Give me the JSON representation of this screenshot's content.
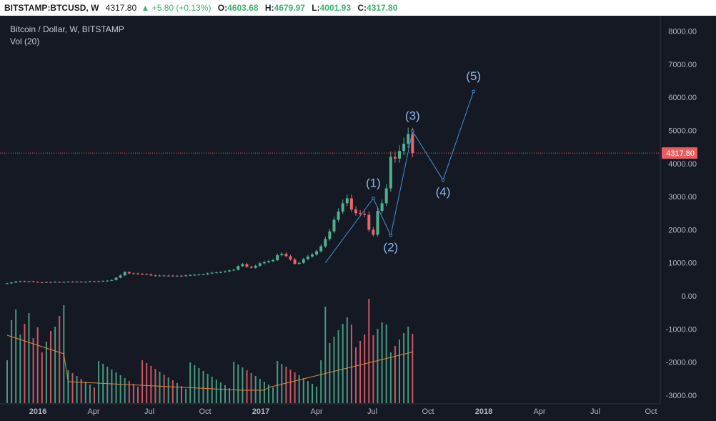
{
  "header": {
    "symbol": "BITSTAMP:BTCUSD, W",
    "last": "4317.80",
    "change": "▲ +5.80 (+0.13%)",
    "o_label": "O:",
    "o_value": "4603.68",
    "h_label": "H:",
    "h_value": "4679.97",
    "l_label": "L:",
    "l_value": "4001.93",
    "c_label": "C:",
    "c_value": "4317.80"
  },
  "legend": {
    "title": "Bitcoin / Dollar, W, BITSTAMP",
    "volume": "Vol (20)"
  },
  "colors": {
    "background": "#151924",
    "up": "#4fb08f",
    "down": "#e8646f",
    "wave": "#4a8fd6",
    "ma": "#d9893f",
    "last_price_badge": "#ea5d5f"
  },
  "chart_data": {
    "type": "candlestick",
    "title": "Bitcoin / Dollar, W, BITSTAMP",
    "y_axis_ticks": [
      8000,
      7000,
      6000,
      5000,
      4000,
      3000,
      2000,
      1000,
      0,
      -1000,
      -2000,
      -3000
    ],
    "y_axis_labels": [
      "8000.00",
      "7000.00",
      "6000.00",
      "5000.00",
      "4000.00",
      "3000.00",
      "2000.00",
      "1000.00",
      "0.00",
      "-1000.00",
      "-2000.00",
      "-3000.00"
    ],
    "x_axis_labels": [
      "2016",
      "Apr",
      "Jul",
      "Oct",
      "2017",
      "Apr",
      "Jul",
      "Oct",
      "2018",
      "Apr",
      "Jul",
      "Oct"
    ],
    "last_price": 4317.8,
    "last_price_label": "4317.80",
    "weekly_close": [
      380,
      404,
      435,
      445,
      432,
      440,
      422,
      410,
      405,
      418,
      415,
      425,
      420,
      422,
      428,
      425,
      430,
      418,
      425,
      440,
      438,
      445,
      452,
      460,
      480,
      550,
      620,
      720,
      680,
      675,
      665,
      655,
      650,
      620,
      600,
      615,
      610,
      612,
      605,
      610,
      600,
      620,
      630,
      640,
      645,
      650,
      680,
      700,
      710,
      720,
      740,
      770,
      790,
      900,
      960,
      880,
      850,
      910,
      985,
      1020,
      1050,
      1080,
      1230,
      1270,
      1200,
      1100,
      970,
      1000,
      1110,
      1190,
      1250,
      1350,
      1500,
      1720,
      1950,
      2300,
      2550,
      2800,
      2950,
      2610,
      2500,
      2480,
      2450,
      2000,
      1850,
      2570,
      2800,
      3250,
      4200,
      4150,
      4380,
      4600,
      4890,
      4317.8
    ],
    "wave_points": [
      {
        "label": "",
        "date_index": 73,
        "value": 1000
      },
      {
        "label": "(1)",
        "date_index": 84,
        "value": 2950
      },
      {
        "label": "(2)",
        "date_index": 88,
        "value": 1830
      },
      {
        "label": "(3)",
        "date_index": 93,
        "value": 4980
      },
      {
        "label": "(4)",
        "date_index": 100,
        "value": 3500
      },
      {
        "label": "(5)",
        "date_index": 107,
        "value": 6180
      }
    ],
    "volume_ma_label": "Vol (20)"
  }
}
